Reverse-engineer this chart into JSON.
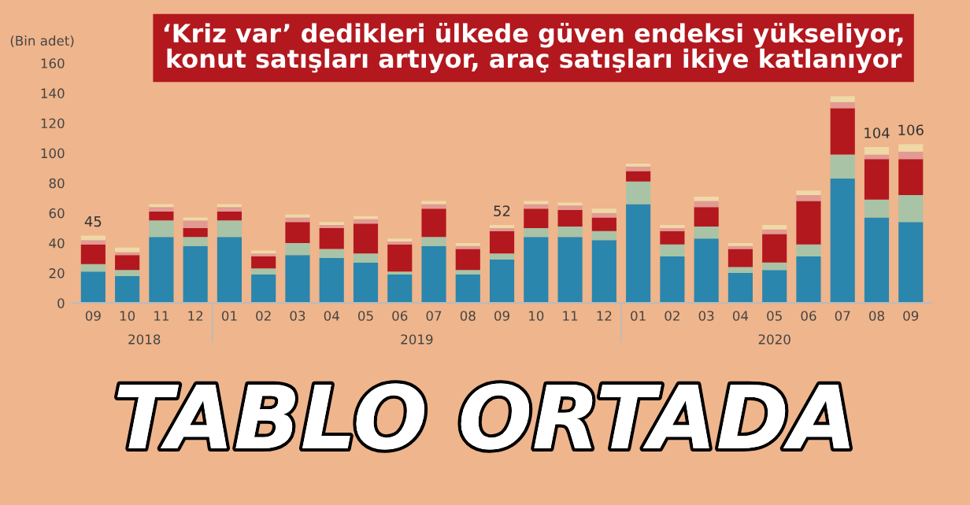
{
  "chart_data": {
    "type": "bar",
    "stacked": true,
    "title": "‘Kriz var’ dedikleri ülkede güven endeksi yükseliyor,\nkonut satışları artıyor, araç satışları ikiye katlanıyor",
    "subtitle": "TABLO ORTADA",
    "ylabel": "(Bin adet)",
    "categories": [
      "09",
      "10",
      "11",
      "12",
      "01",
      "02",
      "03",
      "04",
      "05",
      "06",
      "07",
      "08",
      "09",
      "10",
      "11",
      "12",
      "01",
      "02",
      "03",
      "04",
      "05",
      "06",
      "07",
      "08",
      "09"
    ],
    "annotations": [
      "2018",
      "2019",
      "2020"
    ],
    "series": [
      {
        "color": "#2a86ad",
        "values": [
          21,
          18,
          44,
          38,
          44,
          19,
          32,
          30,
          27,
          19,
          38,
          19,
          29,
          44,
          44,
          42,
          66,
          31,
          43,
          20,
          22,
          31,
          83,
          57,
          54
        ]
      },
      {
        "color": "#a9c3a6",
        "values": [
          5,
          4,
          11,
          6,
          11,
          4,
          8,
          6,
          6,
          2,
          6,
          3,
          4,
          6,
          7,
          6,
          15,
          8,
          8,
          4,
          5,
          8,
          16,
          12,
          18
        ]
      },
      {
        "color": "#b3181f",
        "values": [
          13,
          10,
          6,
          6,
          6,
          8,
          14,
          14,
          20,
          18,
          19,
          14,
          15,
          13,
          11,
          9,
          7,
          9,
          13,
          12,
          19,
          29,
          31,
          27,
          24
        ]
      },
      {
        "color": "#e29a93",
        "values": [
          3,
          2,
          3,
          5,
          3,
          2,
          3,
          2,
          3,
          2,
          3,
          2,
          2,
          3,
          3,
          3,
          3,
          2,
          4,
          2,
          3,
          4,
          4,
          3,
          5
        ]
      },
      {
        "color": "#efd9a6",
        "values": [
          3,
          3,
          2,
          2,
          2,
          2,
          2,
          2,
          2,
          2,
          2,
          2,
          2,
          2,
          2,
          3,
          2,
          2,
          3,
          2,
          3,
          3,
          4,
          5,
          5
        ]
      }
    ],
    "totals": [
      "45",
      null,
      null,
      null,
      null,
      null,
      null,
      null,
      null,
      null,
      null,
      null,
      "52",
      null,
      null,
      null,
      null,
      null,
      null,
      null,
      null,
      null,
      null,
      "104",
      "106"
    ],
    "ylim": [
      0,
      160
    ],
    "yticks": [
      0,
      20,
      40,
      60,
      80,
      100,
      120,
      140,
      160
    ],
    "grid": false,
    "legend": false
  }
}
